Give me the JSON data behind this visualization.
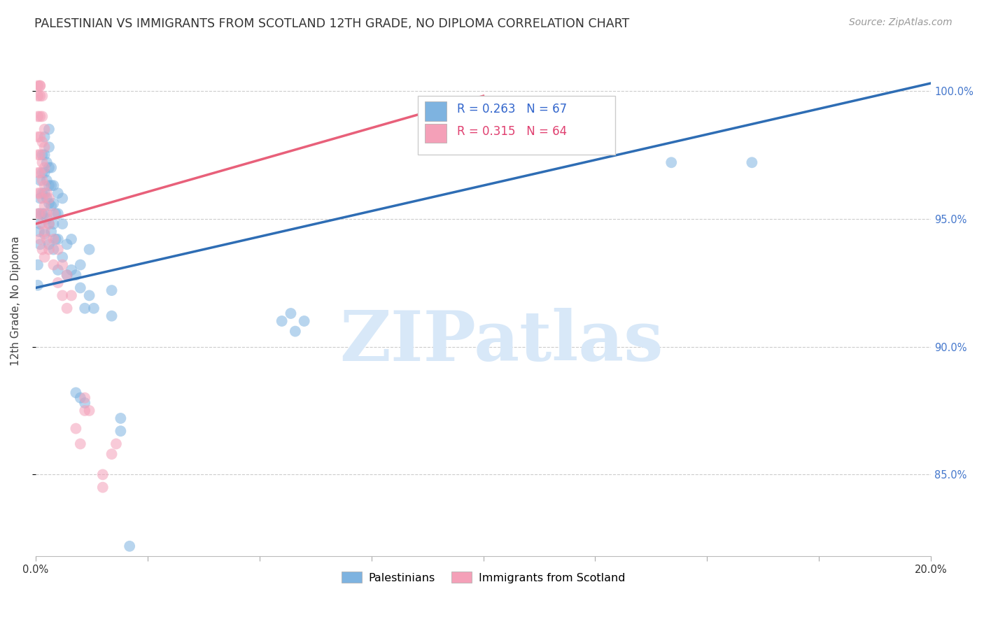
{
  "title": "PALESTINIAN VS IMMIGRANTS FROM SCOTLAND 12TH GRADE, NO DIPLOMA CORRELATION CHART",
  "source": "Source: ZipAtlas.com",
  "ylabel": "12th Grade, No Diploma",
  "yticks_labels": [
    "100.0%",
    "95.0%",
    "90.0%",
    "85.0%"
  ],
  "ytick_vals": [
    1.0,
    0.95,
    0.9,
    0.85
  ],
  "xmin": 0.0,
  "xmax": 0.2,
  "ymin": 0.818,
  "ymax": 1.018,
  "blue_scatter": [
    [
      0.0005,
      0.924
    ],
    [
      0.0005,
      0.932
    ],
    [
      0.0008,
      0.945
    ],
    [
      0.0008,
      0.952
    ],
    [
      0.001,
      0.94
    ],
    [
      0.001,
      0.948
    ],
    [
      0.001,
      0.958
    ],
    [
      0.001,
      0.965
    ],
    [
      0.0015,
      0.952
    ],
    [
      0.0015,
      0.96
    ],
    [
      0.0015,
      0.968
    ],
    [
      0.0015,
      0.975
    ],
    [
      0.002,
      0.944
    ],
    [
      0.002,
      0.952
    ],
    [
      0.002,
      0.96
    ],
    [
      0.002,
      0.968
    ],
    [
      0.002,
      0.975
    ],
    [
      0.002,
      0.982
    ],
    [
      0.0025,
      0.95
    ],
    [
      0.0025,
      0.958
    ],
    [
      0.0025,
      0.965
    ],
    [
      0.0025,
      0.972
    ],
    [
      0.003,
      0.94
    ],
    [
      0.003,
      0.948
    ],
    [
      0.003,
      0.956
    ],
    [
      0.003,
      0.963
    ],
    [
      0.003,
      0.97
    ],
    [
      0.003,
      0.978
    ],
    [
      0.003,
      0.985
    ],
    [
      0.0035,
      0.945
    ],
    [
      0.0035,
      0.955
    ],
    [
      0.0035,
      0.963
    ],
    [
      0.0035,
      0.97
    ],
    [
      0.004,
      0.938
    ],
    [
      0.004,
      0.948
    ],
    [
      0.004,
      0.956
    ],
    [
      0.004,
      0.963
    ],
    [
      0.0045,
      0.942
    ],
    [
      0.0045,
      0.952
    ],
    [
      0.005,
      0.93
    ],
    [
      0.005,
      0.942
    ],
    [
      0.005,
      0.952
    ],
    [
      0.005,
      0.96
    ],
    [
      0.006,
      0.935
    ],
    [
      0.006,
      0.948
    ],
    [
      0.006,
      0.958
    ],
    [
      0.007,
      0.928
    ],
    [
      0.007,
      0.94
    ],
    [
      0.008,
      0.93
    ],
    [
      0.008,
      0.942
    ],
    [
      0.009,
      0.882
    ],
    [
      0.009,
      0.928
    ],
    [
      0.01,
      0.88
    ],
    [
      0.01,
      0.923
    ],
    [
      0.01,
      0.932
    ],
    [
      0.011,
      0.878
    ],
    [
      0.011,
      0.915
    ],
    [
      0.012,
      0.92
    ],
    [
      0.012,
      0.938
    ],
    [
      0.013,
      0.915
    ],
    [
      0.017,
      0.912
    ],
    [
      0.017,
      0.922
    ],
    [
      0.019,
      0.867
    ],
    [
      0.019,
      0.872
    ],
    [
      0.021,
      0.822
    ],
    [
      0.055,
      0.91
    ],
    [
      0.057,
      0.913
    ],
    [
      0.058,
      0.906
    ],
    [
      0.06,
      0.91
    ],
    [
      0.142,
      0.972
    ],
    [
      0.16,
      0.972
    ]
  ],
  "pink_scatter": [
    [
      0.0005,
      0.952
    ],
    [
      0.0005,
      0.96
    ],
    [
      0.0005,
      0.968
    ],
    [
      0.0005,
      0.975
    ],
    [
      0.0005,
      0.982
    ],
    [
      0.0005,
      0.99
    ],
    [
      0.0005,
      0.998
    ],
    [
      0.0005,
      1.002
    ],
    [
      0.001,
      0.942
    ],
    [
      0.001,
      0.952
    ],
    [
      0.001,
      0.96
    ],
    [
      0.001,
      0.968
    ],
    [
      0.001,
      0.975
    ],
    [
      0.001,
      0.982
    ],
    [
      0.001,
      0.99
    ],
    [
      0.001,
      0.998
    ],
    [
      0.001,
      1.002
    ],
    [
      0.001,
      1.002
    ],
    [
      0.0015,
      0.938
    ],
    [
      0.0015,
      0.948
    ],
    [
      0.0015,
      0.958
    ],
    [
      0.0015,
      0.965
    ],
    [
      0.0015,
      0.972
    ],
    [
      0.0015,
      0.98
    ],
    [
      0.0015,
      0.99
    ],
    [
      0.0015,
      0.998
    ],
    [
      0.002,
      0.935
    ],
    [
      0.002,
      0.945
    ],
    [
      0.002,
      0.955
    ],
    [
      0.002,
      0.963
    ],
    [
      0.002,
      0.97
    ],
    [
      0.002,
      0.978
    ],
    [
      0.002,
      0.985
    ],
    [
      0.0025,
      0.942
    ],
    [
      0.0025,
      0.952
    ],
    [
      0.0025,
      0.96
    ],
    [
      0.003,
      0.938
    ],
    [
      0.003,
      0.948
    ],
    [
      0.003,
      0.958
    ],
    [
      0.004,
      0.932
    ],
    [
      0.004,
      0.942
    ],
    [
      0.004,
      0.952
    ],
    [
      0.005,
      0.925
    ],
    [
      0.005,
      0.938
    ],
    [
      0.006,
      0.92
    ],
    [
      0.006,
      0.932
    ],
    [
      0.007,
      0.915
    ],
    [
      0.007,
      0.928
    ],
    [
      0.008,
      0.92
    ],
    [
      0.009,
      0.868
    ],
    [
      0.01,
      0.862
    ],
    [
      0.011,
      0.875
    ],
    [
      0.011,
      0.88
    ],
    [
      0.012,
      0.875
    ],
    [
      0.015,
      0.845
    ],
    [
      0.015,
      0.85
    ],
    [
      0.017,
      0.858
    ],
    [
      0.018,
      0.862
    ]
  ],
  "blue_line_x": [
    0.0,
    0.2
  ],
  "blue_line_y": [
    0.923,
    1.003
  ],
  "pink_line_x": [
    0.0,
    0.1
  ],
  "pink_line_y": [
    0.948,
    0.998
  ],
  "blue_color": "#7EB3E0",
  "pink_color": "#F4A0B8",
  "blue_line_color": "#2E6DB4",
  "pink_line_color": "#E8607A",
  "blue_scatter_alpha": 0.55,
  "pink_scatter_alpha": 0.55,
  "scatter_size": 130,
  "watermark_text": "ZIPatlas",
  "watermark_color": "#D8E8F8",
  "title_fontsize": 12.5,
  "source_fontsize": 10,
  "tick_fontsize": 10.5,
  "ylabel_fontsize": 11
}
